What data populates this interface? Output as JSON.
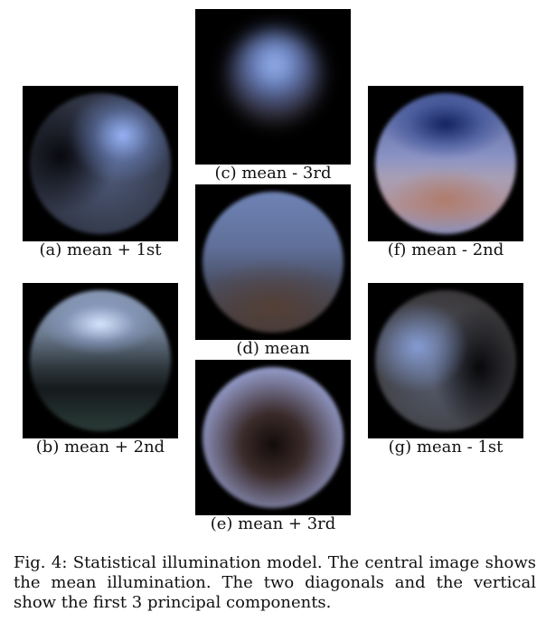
{
  "figure": {
    "panels": [
      {
        "id": "a",
        "caption": "(a) mean + 1st"
      },
      {
        "id": "b",
        "caption": "(b) mean + 2nd"
      },
      {
        "id": "c",
        "caption": "(c) mean - 3rd"
      },
      {
        "id": "d",
        "caption": "(d) mean"
      },
      {
        "id": "e",
        "caption": "(e) mean + 3rd"
      },
      {
        "id": "f",
        "caption": "(f) mean - 2nd"
      },
      {
        "id": "g",
        "caption": "(g) mean - 1st"
      }
    ],
    "caption": "Fig. 4: Statistical illumination model. The central image shows the mean illumination. The two diagonals and the vertical show the first 3 principal components."
  }
}
